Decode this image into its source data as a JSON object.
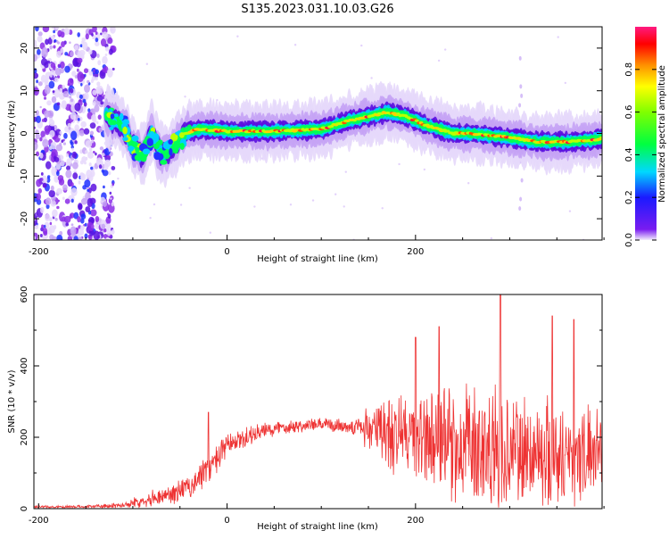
{
  "title": "S135.2023.031.10.03.G26",
  "chart_data": [
    {
      "type": "heatmap",
      "xlabel": "Height of straight line (km)",
      "ylabel": "Frequency (Hz)",
      "xlim": [
        -200,
        400
      ],
      "ylim": [
        -25,
        25
      ],
      "x_ticks": [
        -200,
        0,
        200
      ],
      "y_ticks": [
        -20,
        -10,
        0,
        10,
        20
      ],
      "colorbar": {
        "label": "Normalized spectral amplitude",
        "range": [
          0,
          1
        ],
        "ticks": [
          "0.0",
          "0.2",
          "0.4",
          "0.6",
          "0.8"
        ],
        "colormap": "rainbow (purple-blue-cyan-green-yellow-orange-red-magenta)"
      },
      "ridge_center_freq": {
        "x": [
          -205,
          -170,
          -130,
          -110,
          -100,
          -90,
          -80,
          -70,
          -60,
          -45,
          -30,
          0,
          50,
          100,
          130,
          150,
          170,
          190,
          210,
          240,
          260,
          300,
          330,
          360,
          390,
          400
        ],
        "y": [
          0,
          2,
          4,
          2,
          -3,
          -5,
          0,
          -5,
          -4,
          0,
          1,
          0.5,
          0.5,
          1,
          3,
          4,
          5,
          4,
          2,
          0,
          0,
          -1,
          -2,
          -2,
          -1.5,
          -1
        ]
      },
      "noise_region_x": [
        -205,
        -125
      ]
    },
    {
      "type": "line",
      "xlabel": "Height of straight line (km)",
      "ylabel": "SNR (10 * v/v)",
      "xlim": [
        -200,
        400
      ],
      "ylim": [
        0,
        600
      ],
      "x_ticks": [
        -200,
        0,
        200
      ],
      "y_ticks": [
        0,
        200,
        400,
        600
      ],
      "series": [
        {
          "color": "#ff0000",
          "envelope": {
            "x": [
              -205,
              -150,
              -120,
              -100,
              -80,
              -60,
              -40,
              -25,
              -10,
              0,
              30,
              60,
              100,
              140,
              150,
              180,
              200,
              220,
              260,
              290,
              320,
              350,
              380,
              400
            ],
            "base": [
              5,
              5,
              8,
              15,
              30,
              40,
              60,
              100,
              140,
              175,
              210,
              230,
              235,
              230,
              225,
              210,
              200,
              190,
              170,
              160,
              160,
              150,
              150,
              190
            ],
            "spread": [
              5,
              5,
              10,
              15,
              25,
              35,
              40,
              50,
              50,
              40,
              30,
              25,
              20,
              30,
              90,
              140,
              160,
              180,
              200,
              200,
              190,
              180,
              160,
              110
            ]
          },
          "peaks": [
            {
              "x": -20,
              "y": 270
            },
            {
              "x": 200,
              "y": 480
            },
            {
              "x": 225,
              "y": 510
            },
            {
              "x": 290,
              "y": 600
            },
            {
              "x": 345,
              "y": 540
            },
            {
              "x": 368,
              "y": 530
            }
          ]
        }
      ]
    }
  ]
}
